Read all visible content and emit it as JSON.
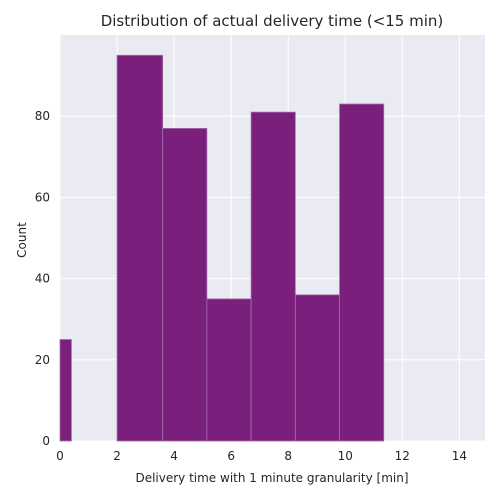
{
  "chart_data": {
    "type": "bar",
    "title": "Distribution of actual delivery time (<15 min)",
    "xlabel": "Delivery time with 1 minute granularity [min]",
    "ylabel": "Count",
    "xlim": [
      0,
      14.9
    ],
    "ylim": [
      0,
      100
    ],
    "xticks": [
      0,
      2,
      4,
      6,
      8,
      10,
      12,
      14
    ],
    "yticks": [
      0,
      20,
      40,
      60,
      80
    ],
    "grid": true,
    "bars": [
      {
        "x0": 0.0,
        "x1": 0.4,
        "value": 25
      },
      {
        "x0": 2.0,
        "x1": 3.6,
        "value": 95
      },
      {
        "x0": 3.6,
        "x1": 5.15,
        "value": 77
      },
      {
        "x0": 5.15,
        "x1": 6.7,
        "value": 35
      },
      {
        "x0": 6.7,
        "x1": 8.25,
        "value": 81
      },
      {
        "x0": 8.25,
        "x1": 9.8,
        "value": 36
      },
      {
        "x0": 9.8,
        "x1": 11.35,
        "value": 83
      }
    ],
    "colors": {
      "bar": "#7b1f7d",
      "background": "#eaeaf2",
      "grid": "#ffffff"
    }
  }
}
